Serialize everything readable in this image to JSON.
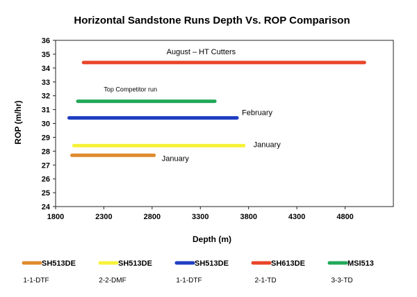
{
  "chart_data": {
    "type": "line",
    "title": "Horizontal Sandstone Runs Depth Vs. ROP Comparison",
    "xlabel": "Depth (m)",
    "ylabel": "ROP (m/hr)",
    "xlim": [
      1800,
      5300
    ],
    "ylim": [
      24,
      36
    ],
    "xticks": [
      "1800",
      "2300",
      "2800",
      "3300",
      "3800",
      "4300",
      "4800"
    ],
    "yticks": [
      "24",
      "25",
      "26",
      "27",
      "28",
      "29",
      "30",
      "31",
      "32",
      "33",
      "34",
      "35",
      "36"
    ],
    "grid": false,
    "legend_position": "bottom",
    "series": [
      {
        "name": "SH513DE",
        "sublabel": "1-1-DTF",
        "color": "#e08a2e",
        "x": [
          1970,
          2820
        ],
        "y": [
          27.7,
          27.7
        ]
      },
      {
        "name": "SH513DE",
        "sublabel": "2-2-DMF",
        "color": "#f7f23a",
        "x": [
          1990,
          3750
        ],
        "y": [
          28.4,
          28.4
        ]
      },
      {
        "name": "SH513DE",
        "sublabel": "1-1-DTF",
        "color": "#1f3ec2",
        "x": [
          1940,
          3680
        ],
        "y": [
          30.4,
          30.4
        ]
      },
      {
        "name": "SH613DE",
        "sublabel": "2-1-TD",
        "color": "#e8452a",
        "x": [
          2090,
          5000
        ],
        "y": [
          34.4,
          34.4
        ]
      },
      {
        "name": "MSI513",
        "sublabel": "3-3-TD",
        "color": "#22a85a",
        "x": [
          2030,
          3450
        ],
        "y": [
          31.6,
          31.6
        ]
      }
    ],
    "annotations": [
      {
        "text": "January",
        "x": 2900,
        "y": 27.3,
        "size": "normal"
      },
      {
        "text": "January",
        "x": 3850,
        "y": 28.3,
        "size": "normal"
      },
      {
        "text": "February",
        "x": 3730,
        "y": 30.6,
        "size": "normal"
      },
      {
        "text": "August – HT Cutters",
        "x": 2950,
        "y": 35.0,
        "size": "normal"
      },
      {
        "text": "Top Competitor run",
        "x": 2300,
        "y": 32.3,
        "size": "small"
      }
    ]
  }
}
